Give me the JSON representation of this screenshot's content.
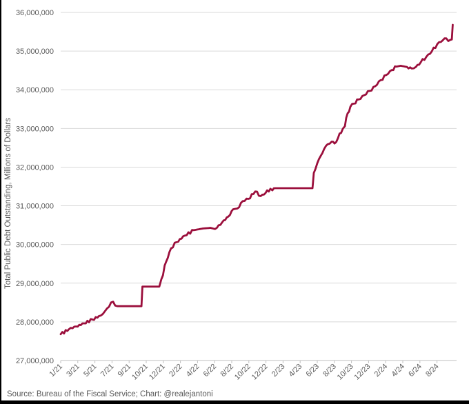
{
  "chart_data": {
    "type": "line",
    "title": "",
    "xlabel": "",
    "ylabel": "Total Public Debt Outstanding, Millions of Dollars",
    "ylim": [
      27000000,
      36000000
    ],
    "y_tick_step": 1000000,
    "y_tick_labels": [
      "27,000,000",
      "28,000,000",
      "29,000,000",
      "30,000,000",
      "31,000,000",
      "32,000,000",
      "33,000,000",
      "34,000,000",
      "35,000,000",
      "36,000,000"
    ],
    "x_tick_labels": [
      "1/21",
      "3/21",
      "5/21",
      "7/21",
      "9/21",
      "10/21",
      "12/21",
      "2/22",
      "4/22",
      "6/22",
      "8/22",
      "10/22",
      "12/22",
      "2/23",
      "4/23",
      "6/23",
      "8/23",
      "10/23",
      "12/23",
      "2/24",
      "4/24",
      "6/24",
      "8/24"
    ],
    "grid": "horizontal-only",
    "legend": "none",
    "series": [
      {
        "name": "Total Public Debt Outstanding",
        "x_unit": "months since January 2021",
        "y_unit": "millions of dollars",
        "points": [
          [
            0,
            27680000
          ],
          [
            0.97,
            27810000
          ],
          [
            1.8,
            27880000
          ],
          [
            2.74,
            27960000
          ],
          [
            3.7,
            28060000
          ],
          [
            4.68,
            28160000
          ],
          [
            5.16,
            28270000
          ],
          [
            5.65,
            28390000
          ],
          [
            5.89,
            28500000
          ],
          [
            6.13,
            28520000
          ],
          [
            6.37,
            28420000
          ],
          [
            6.61,
            28405000
          ],
          [
            8.72,
            28405000
          ],
          [
            8.78,
            28910000
          ],
          [
            10.53,
            28910000
          ],
          [
            10.77,
            29100000
          ],
          [
            11.34,
            29560000
          ],
          [
            11.9,
            29900000
          ],
          [
            12.55,
            30060000
          ],
          [
            13.52,
            30230000
          ],
          [
            14.56,
            30370000
          ],
          [
            15.53,
            30410000
          ],
          [
            16.5,
            30430000
          ],
          [
            17.06,
            30400000
          ],
          [
            17.87,
            30570000
          ],
          [
            18.6,
            30720000
          ],
          [
            19.16,
            30910000
          ],
          [
            19.65,
            30930000
          ],
          [
            20.29,
            31120000
          ],
          [
            20.94,
            31180000
          ],
          [
            21.74,
            31370000
          ],
          [
            22.39,
            31250000
          ],
          [
            22.95,
            31330000
          ],
          [
            23.52,
            31440000
          ],
          [
            23.76,
            31400000
          ],
          [
            24.08,
            31455000
          ],
          [
            28.44,
            31455000
          ],
          [
            28.6,
            31850000
          ],
          [
            29.0,
            32100000
          ],
          [
            29.4,
            32290000
          ],
          [
            29.81,
            32470000
          ],
          [
            30.21,
            32590000
          ],
          [
            30.69,
            32660000
          ],
          [
            31.02,
            32610000
          ],
          [
            31.42,
            32750000
          ],
          [
            31.98,
            32990000
          ],
          [
            32.23,
            33060000
          ],
          [
            32.55,
            33390000
          ],
          [
            32.87,
            33560000
          ],
          [
            33.28,
            33640000
          ],
          [
            33.84,
            33750000
          ],
          [
            34.48,
            33860000
          ],
          [
            35.13,
            33970000
          ],
          [
            35.77,
            34090000
          ],
          [
            36.42,
            34250000
          ],
          [
            37.06,
            34380000
          ],
          [
            37.71,
            34510000
          ],
          [
            38.27,
            34600000
          ],
          [
            38.76,
            34620000
          ],
          [
            39.48,
            34590000
          ],
          [
            40.05,
            34550000
          ],
          [
            40.53,
            34590000
          ],
          [
            41.1,
            34710000
          ],
          [
            41.75,
            34850000
          ],
          [
            42.39,
            34990000
          ],
          [
            43.03,
            35180000
          ],
          [
            43.68,
            35280000
          ],
          [
            44.08,
            35330000
          ],
          [
            44.32,
            35260000
          ],
          [
            44.56,
            35290000
          ],
          [
            44.73,
            35300000
          ],
          [
            44.84,
            35680000
          ]
        ]
      }
    ]
  },
  "footer": {
    "source": "Source: Bureau of the Fiscal Service; Chart: @realejantoni"
  },
  "colors": {
    "line": "#9B0F3C",
    "gridline": "#D9D9D9",
    "axis": "#BFBFBF",
    "label_text": "#595959",
    "border": "#000000",
    "background": "#FFFFFF"
  }
}
